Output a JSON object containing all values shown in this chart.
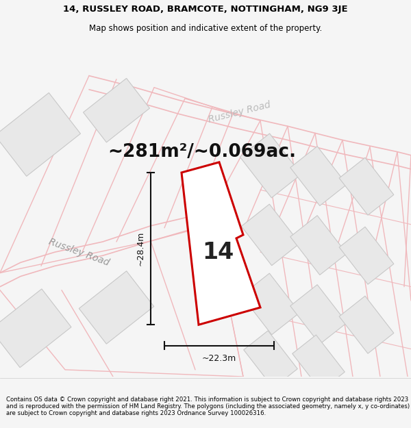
{
  "title_line1": "14, RUSSLEY ROAD, BRAMCOTE, NOTTINGHAM, NG9 3JE",
  "title_line2": "Map shows position and indicative extent of the property.",
  "area_text": "~281m²/~0.069ac.",
  "property_number": "14",
  "dim_height": "~28.4m",
  "dim_width": "~22.3m",
  "road_label1": "Russley Road",
  "road_label2": "Russley Road",
  "footer": "Contains OS data © Crown copyright and database right 2021. This information is subject to Crown copyright and database rights 2023 and is reproduced with the permission of HM Land Registry. The polygons (including the associated geometry, namely x, y co-ordinates) are subject to Crown copyright and database rights 2023 Ordnance Survey 100026316.",
  "bg_color": "#f5f5f5",
  "map_bg": "#ffffff",
  "road_line_color": "#f0b8bc",
  "building_face_color": "#e8e8e8",
  "building_edge_color": "#c8c8c8",
  "property_outline_color": "#cc0000",
  "property_fill_color": "#ffffff",
  "dim_line_color": "#111111",
  "road_text_color": "#aaaaaa",
  "title_fontsize": 9.5,
  "subtitle_fontsize": 8.5,
  "area_fontsize": 19,
  "number_fontsize": 24,
  "road_fontsize": 10,
  "dim_fontsize": 9,
  "footer_fontsize": 6.2
}
